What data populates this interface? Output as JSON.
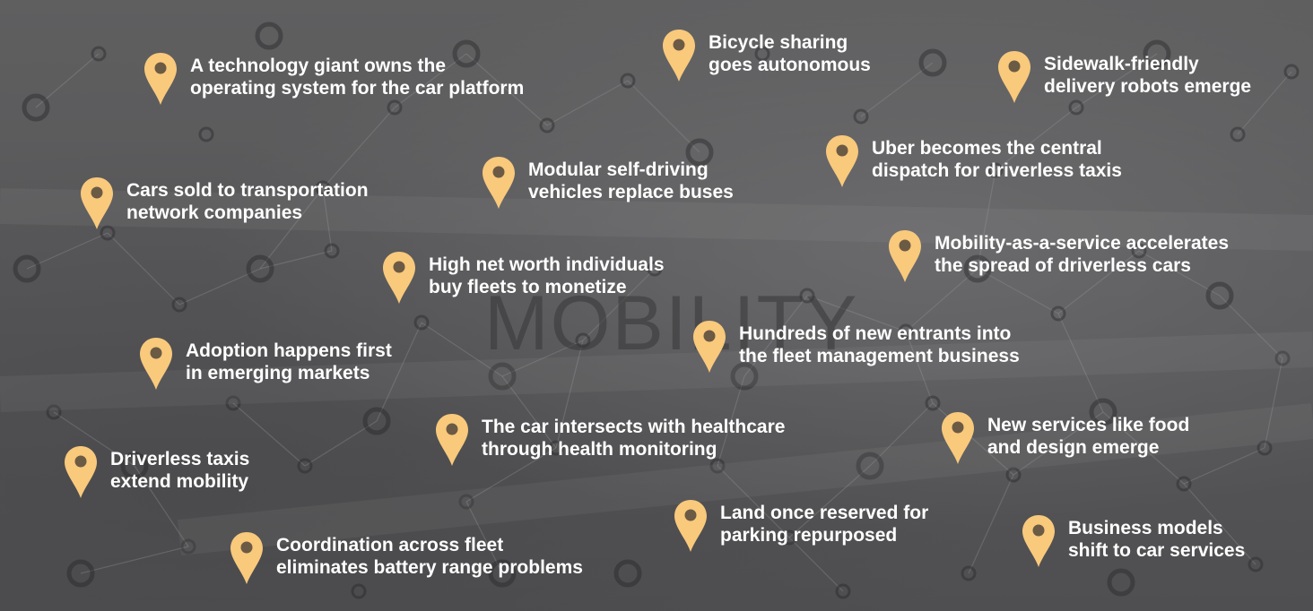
{
  "background_word": "MOBILITY",
  "accent_color": "#f9c97c",
  "pin_icon": "map-marker-icon",
  "items": [
    {
      "id": "tech-giant-os",
      "lines": [
        "A technology giant owns the",
        "operating system for the car platform"
      ]
    },
    {
      "id": "bicycle-sharing",
      "lines": [
        "Bicycle sharing",
        "goes autonomous"
      ]
    },
    {
      "id": "sidewalk-robots",
      "lines": [
        "Sidewalk-friendly",
        "delivery robots emerge"
      ]
    },
    {
      "id": "uber-dispatch",
      "lines": [
        "Uber becomes the central",
        "dispatch for driverless taxis"
      ]
    },
    {
      "id": "modular-vehicles",
      "lines": [
        "Modular self-driving",
        "vehicles replace buses"
      ]
    },
    {
      "id": "cars-sold-tnc",
      "lines": [
        "Cars sold to transportation",
        "network companies"
      ]
    },
    {
      "id": "maas",
      "lines": [
        "Mobility-as-a-service accelerates",
        "the spread of driverless cars"
      ]
    },
    {
      "id": "high-net-worth",
      "lines": [
        "High net worth individuals",
        "buy fleets to monetize"
      ]
    },
    {
      "id": "fleet-entrants",
      "lines": [
        "Hundreds of new entrants into",
        "the fleet management business"
      ]
    },
    {
      "id": "emerging-markets",
      "lines": [
        "Adoption happens first",
        "in emerging markets"
      ]
    },
    {
      "id": "healthcare",
      "lines": [
        "The car intersects with healthcare",
        "through health monitoring"
      ]
    },
    {
      "id": "new-services",
      "lines": [
        "New services like food",
        "and design emerge"
      ]
    },
    {
      "id": "driverless-taxis",
      "lines": [
        "Driverless taxis",
        "extend mobility"
      ]
    },
    {
      "id": "parking-land",
      "lines": [
        "Land once reserved for",
        "parking repurposed"
      ]
    },
    {
      "id": "business-models",
      "lines": [
        "Business models",
        "shift to car services"
      ]
    },
    {
      "id": "battery-coordination",
      "lines": [
        "Coordination across fleet",
        "eliminates battery range problems"
      ]
    }
  ]
}
